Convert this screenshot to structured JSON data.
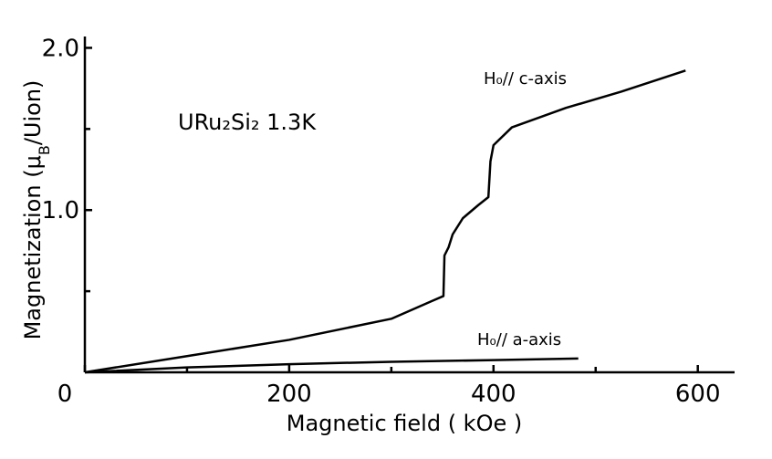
{
  "chart_data": {
    "type": "line",
    "xlabel": "Magnetic field ( kOe )",
    "ylabel_parts": [
      "Magnetization (μ",
      "B",
      "/Uion)"
    ],
    "annotation": "URu₂Si₂  1.3K",
    "xlim": [
      0,
      636
    ],
    "ylim": [
      0,
      2.07
    ],
    "xticks": [
      0,
      200,
      400,
      600
    ],
    "xminor": [
      100,
      300,
      500
    ],
    "yticks": [
      {
        "value": 1.0,
        "label": "1.0"
      },
      {
        "value": 2.0,
        "label": "2.0"
      }
    ],
    "yminor": [
      0.5,
      1.5
    ],
    "color": "#000000",
    "series": [
      {
        "name": "H₀// c-axis",
        "x": [
          0,
          100,
          200,
          300,
          340,
          351,
          352,
          356,
          360,
          370,
          385,
          395,
          397,
          400,
          418,
          471,
          525,
          588
        ],
        "values": [
          0,
          0.1,
          0.2,
          0.33,
          0.44,
          0.47,
          0.72,
          0.77,
          0.85,
          0.95,
          1.03,
          1.08,
          1.3,
          1.4,
          1.51,
          1.63,
          1.73,
          1.86
        ]
      },
      {
        "name": "H₀// a-axis",
        "x": [
          0,
          100,
          200,
          300,
          400,
          483
        ],
        "values": [
          0,
          0.03,
          0.05,
          0.065,
          0.075,
          0.085
        ]
      }
    ]
  }
}
